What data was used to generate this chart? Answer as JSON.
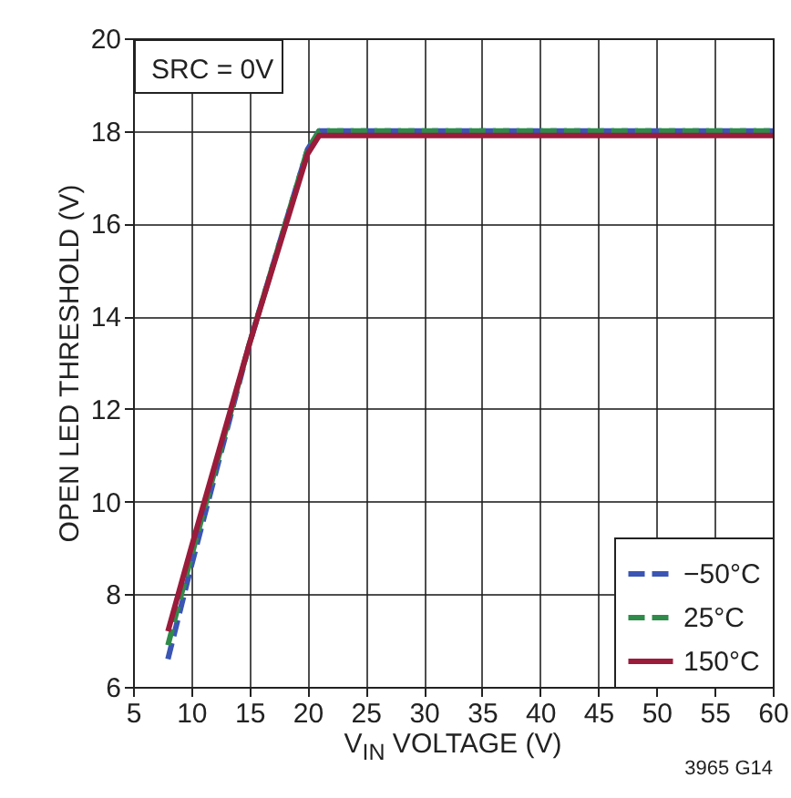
{
  "chart_data": {
    "type": "line",
    "xlabel": "V$_{IN}$ VOLTAGE (V)",
    "ylabel": "OPEN LED THRESHOLD (V)",
    "annotations": [
      "SRC = 0V",
      "3965 G14"
    ],
    "series": [
      {
        "name": "−50°C",
        "color": "#3a55b4",
        "line_style": "dashed",
        "x": [
          8,
          10,
          15,
          20,
          21,
          60
        ],
        "values": [
          6.6,
          8.6,
          13.4,
          17.6,
          18.0,
          18.0
        ]
      },
      {
        "name": "25°C",
        "color": "#2e8b4a",
        "line_style": "dashed",
        "x": [
          8,
          10,
          15,
          20,
          21,
          60
        ],
        "values": [
          6.9,
          8.8,
          13.4,
          17.6,
          18.0,
          18.0
        ]
      },
      {
        "name": "150°C",
        "color": "#9b1b3a",
        "line_style": "solid",
        "x": [
          8,
          10,
          15,
          20,
          21,
          60
        ],
        "values": [
          7.2,
          9.0,
          13.4,
          17.5,
          17.9,
          17.9
        ]
      }
    ],
    "xlim": [
      5,
      60
    ],
    "xticks": [
      5,
      10,
      15,
      20,
      25,
      30,
      35,
      40,
      45,
      50,
      55,
      60
    ],
    "ylim": [
      6,
      20
    ],
    "yticks": [
      6,
      8,
      10,
      12,
      14,
      16,
      18,
      20
    ],
    "grid": true,
    "legend": "bottom right",
    "marker": "none"
  }
}
